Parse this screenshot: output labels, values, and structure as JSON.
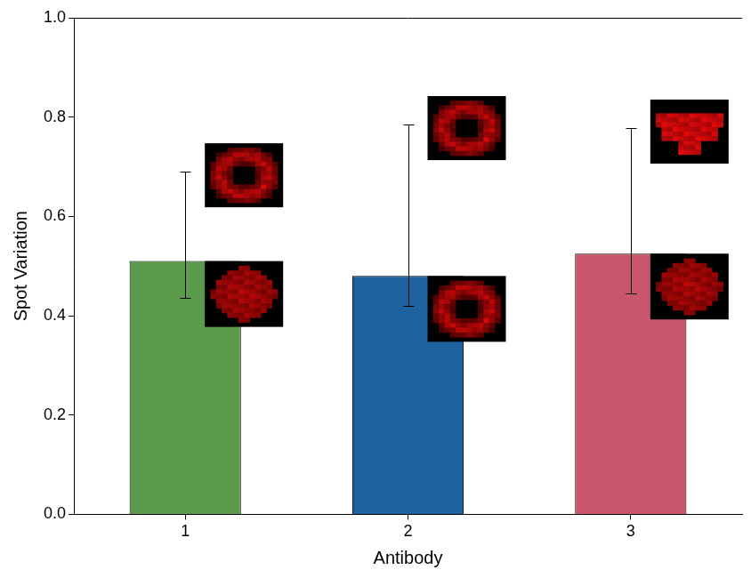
{
  "chart_data": {
    "type": "bar",
    "x_label": "Antibody",
    "y_label": "Spot Variation",
    "categories": [
      "1",
      "2",
      "3"
    ],
    "values": [
      0.51,
      0.48,
      0.525
    ],
    "error_low": [
      0.435,
      0.42,
      0.445
    ],
    "error_high": [
      0.69,
      0.785,
      0.778
    ],
    "colors": [
      "#5b9a4b",
      "#1f62a0",
      "#c9566b"
    ],
    "ylim": [
      0,
      1
    ],
    "yticks": [
      {
        "value": 0,
        "label": "0.0"
      },
      0.2,
      0.4,
      0.6,
      0.8,
      {
        "value": 1,
        "label": "1.0"
      }
    ],
    "grid": false
  }
}
